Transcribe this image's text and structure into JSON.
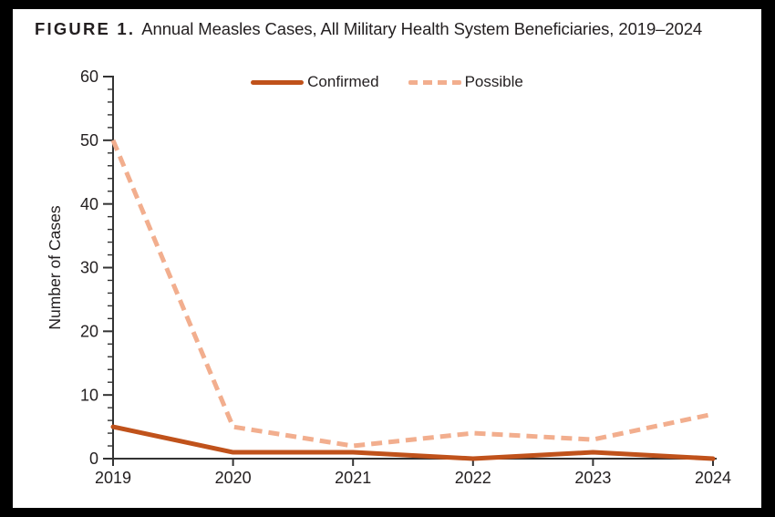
{
  "title": {
    "label": "FIGURE 1.",
    "text": "Annual Measles Cases, All Military Health System Beneficiaries, 2019–2024"
  },
  "chart_data": {
    "type": "line",
    "x": [
      "2019",
      "2020",
      "2021",
      "2022",
      "2023",
      "2024"
    ],
    "series": [
      {
        "name": "Confirmed",
        "values": [
          5,
          1,
          1,
          0,
          1,
          0
        ],
        "color": "#C0521B",
        "style": "solid"
      },
      {
        "name": "Possible",
        "values": [
          50,
          5,
          2,
          4,
          3,
          7
        ],
        "color": "#F2AE8E",
        "style": "dashed"
      }
    ],
    "title": "Annual Measles Cases, All Military Health System Beneficiaries, 2019–2024",
    "xlabel": "",
    "ylabel": "Number of Cases",
    "ylim": [
      0,
      60
    ],
    "ytick_major": 10,
    "ytick_minor": 2,
    "grid": false,
    "legend_position": "top-center"
  },
  "colors": {
    "frame": "#000000",
    "background": "#FFFFFF",
    "axis": "#333333",
    "text": "#231F20"
  }
}
